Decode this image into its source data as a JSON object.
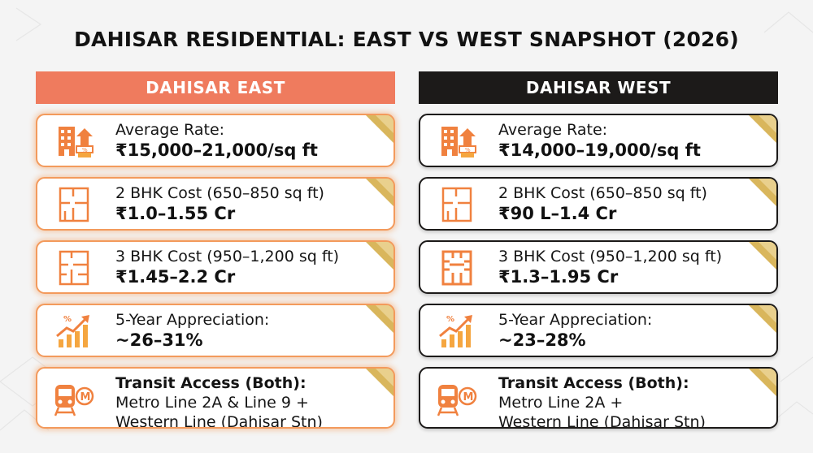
{
  "title": "DAHISAR RESIDENTIAL: EAST VS WEST SNAPSHOT (2026)",
  "colors": {
    "accent": "#ef7b5e",
    "orange_icon": "#f0813f",
    "dark": "#1c1a19",
    "gold": "#d9b65c"
  },
  "east": {
    "header": "DAHISAR EAST",
    "cards": [
      {
        "icon": "building-growth-icon",
        "label": "Average Rate:",
        "value": "₹15,000–21,000/sq ft"
      },
      {
        "icon": "floor-plan-icon",
        "label": "2 BHK Cost (650–850 sq ft)",
        "value": "₹1.0–1.55 Cr"
      },
      {
        "icon": "floor-plan-icon",
        "label": "3 BHK Cost (950–1,200 sq ft)",
        "value": "₹1.45–2.2 Cr"
      },
      {
        "icon": "growth-chart-icon",
        "label": "5-Year Appreciation:",
        "value": "~26–31%"
      },
      {
        "icon": "train-metro-icon",
        "label": "Transit Access (Both):",
        "line1": "Metro Line 2A & Line 9 +",
        "line2": "Western Line (Dahisar Stn)"
      }
    ]
  },
  "west": {
    "header": "DAHISAR WEST",
    "cards": [
      {
        "icon": "building-growth-icon",
        "label": "Average Rate:",
        "value": "₹14,000–19,000/sq ft"
      },
      {
        "icon": "floor-plan-icon",
        "label": "2 BHK Cost (650–850 sq ft)",
        "value": "₹90 L–1.4 Cr"
      },
      {
        "icon": "floor-plan-icon",
        "label": "3 BHK Cost (950–1,200 sq ft)",
        "value": "₹1.3–1.95 Cr"
      },
      {
        "icon": "growth-chart-icon",
        "label": "5-Year Appreciation:",
        "value": "~23–28%"
      },
      {
        "icon": "train-metro-icon",
        "label": "Transit Access (Both):",
        "line1": "Metro Line 2A +",
        "line2": "Western Line (Dahisar Stn)"
      }
    ]
  }
}
